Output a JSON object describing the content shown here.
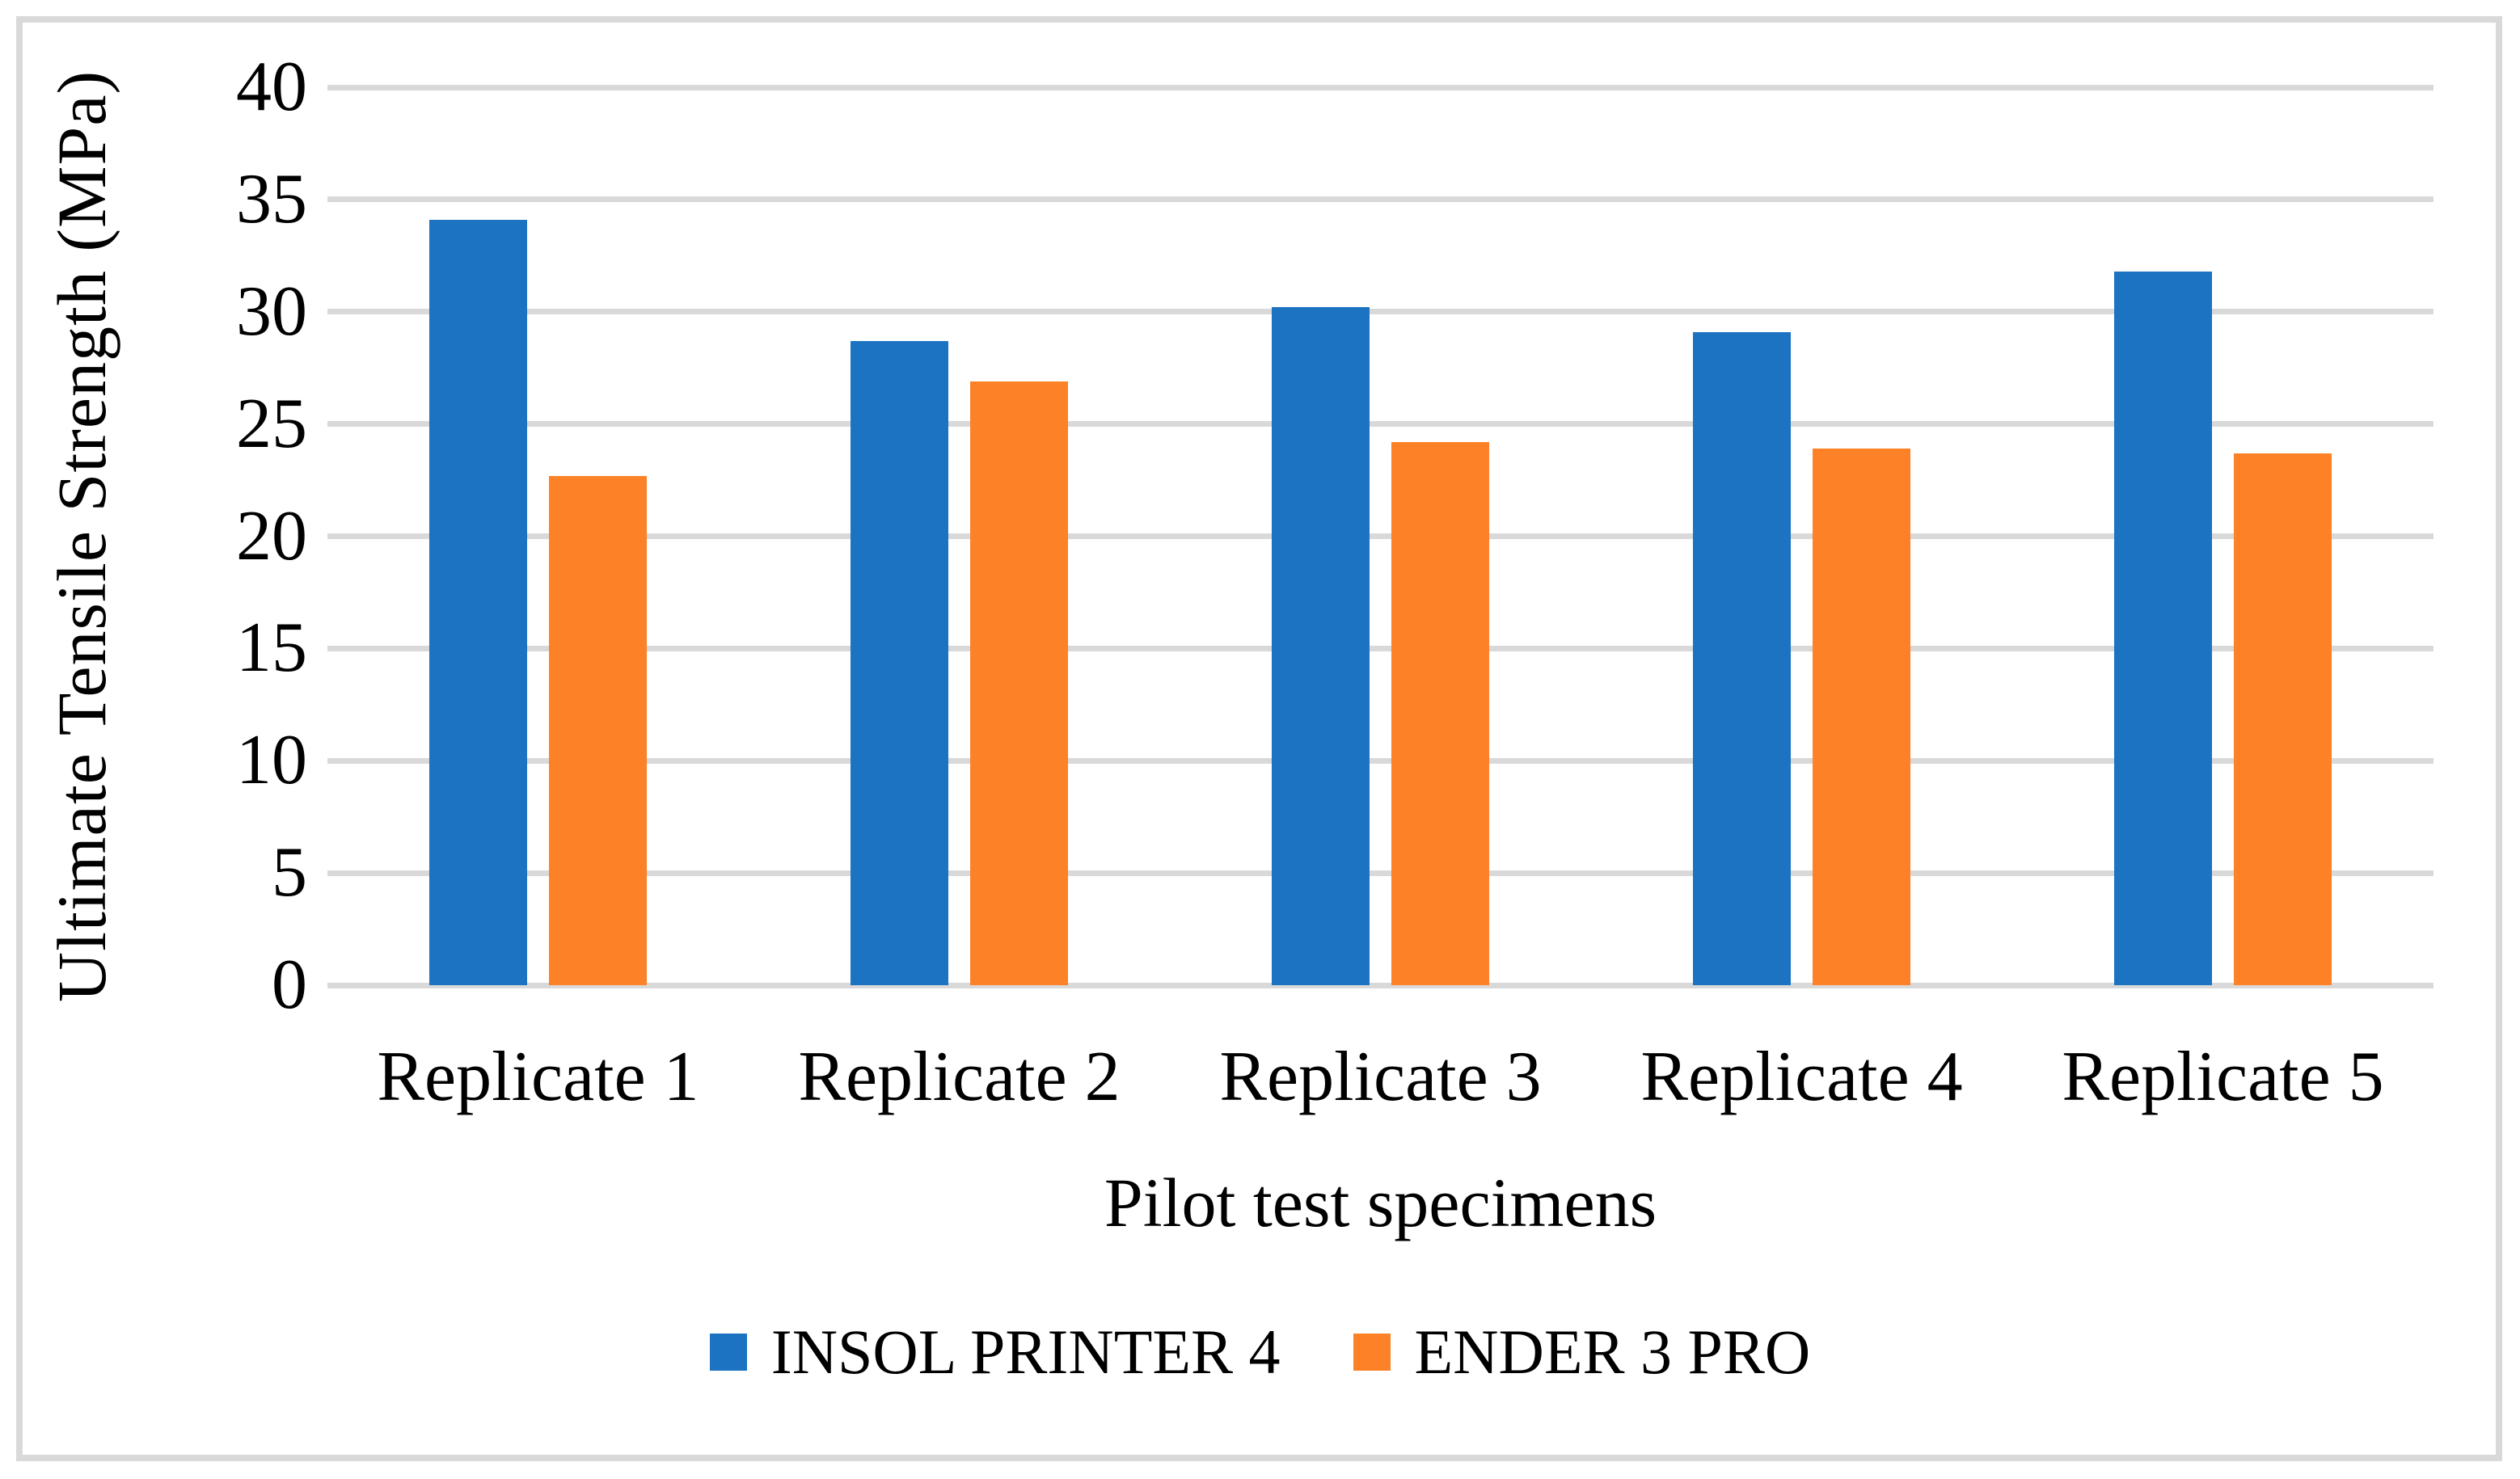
{
  "chart_data": {
    "type": "bar",
    "title": "",
    "categories": [
      "Replicate 1",
      "Replicate 2",
      "Replicate 3",
      "Replicate 4",
      "Replicate 5"
    ],
    "series": [
      {
        "name": "INSOL PRINTER 4",
        "color": "#1B73C2",
        "values": [
          34.1,
          28.7,
          30.2,
          29.1,
          31.8
        ]
      },
      {
        "name": "ENDER 3 PRO",
        "color": "#FD8126",
        "values": [
          22.7,
          26.9,
          24.2,
          23.9,
          23.7
        ]
      }
    ],
    "xlabel": "Pilot test specimens",
    "ylabel": "Ultimate Tensile Strength  (MPa)",
    "ylim": [
      0,
      40
    ],
    "yticks": [
      0,
      5,
      10,
      15,
      20,
      25,
      30,
      35,
      40
    ],
    "grid": "horizontal",
    "gridline_color": "#D9D9D9",
    "border_color": "#D9D9D9",
    "background_color": "#FFFFFF",
    "text_color": "#000000",
    "legend_position": "bottom"
  }
}
